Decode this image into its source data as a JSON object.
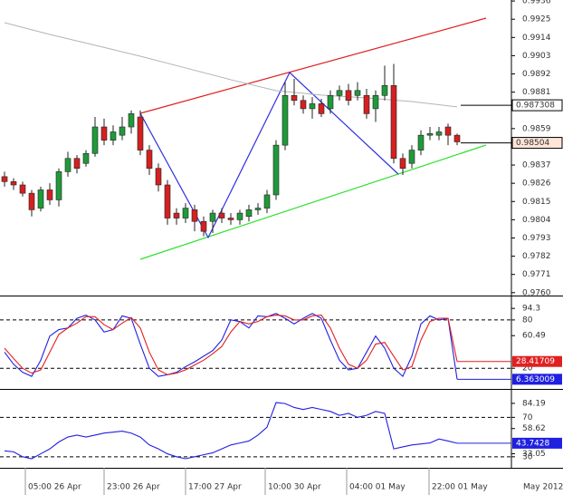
{
  "chart_data": [
    {
      "type": "candlestick",
      "open": [
        0.983,
        0.9827,
        0.9825,
        0.982,
        0.9811,
        0.9822,
        0.9816,
        0.9833,
        0.9841,
        0.9838,
        0.9844,
        0.986,
        0.9852,
        0.9855,
        0.986,
        0.9866,
        0.9846,
        0.9835,
        0.9825,
        0.9808,
        0.9805,
        0.981,
        0.9803,
        0.9803,
        0.9808,
        0.9805,
        0.9804,
        0.9806,
        0.981,
        0.9811,
        0.9819,
        0.9849,
        0.9879,
        0.9876,
        0.9871,
        0.9874,
        0.9871,
        0.9879,
        0.9882,
        0.9879,
        0.9879,
        0.9871,
        0.9879,
        0.9885,
        0.9841,
        0.9838,
        0.9846,
        0.9855,
        0.9855,
        0.986,
        0.9855
      ],
      "high": [
        0.9833,
        0.9829,
        0.9827,
        0.9822,
        0.9824,
        0.9826,
        0.9835,
        0.9845,
        0.9843,
        0.9846,
        0.9866,
        0.9865,
        0.9861,
        0.9866,
        0.987,
        0.987,
        0.9849,
        0.9838,
        0.9828,
        0.9811,
        0.9814,
        0.9813,
        0.9806,
        0.981,
        0.9811,
        0.9808,
        0.981,
        0.9813,
        0.9814,
        0.9822,
        0.9852,
        0.9887,
        0.9889,
        0.9879,
        0.9878,
        0.9877,
        0.9882,
        0.9885,
        0.9886,
        0.9887,
        0.9883,
        0.9882,
        0.9897,
        0.9898,
        0.9844,
        0.9849,
        0.9858,
        0.986,
        0.986,
        0.9862,
        0.9856
      ],
      "low": [
        0.9824,
        0.9822,
        0.9818,
        0.9806,
        0.9809,
        0.9813,
        0.9812,
        0.983,
        0.9832,
        0.9836,
        0.9842,
        0.9849,
        0.9849,
        0.9852,
        0.9856,
        0.9843,
        0.9831,
        0.9821,
        0.9801,
        0.9801,
        0.9802,
        0.9797,
        0.9794,
        0.9796,
        0.9802,
        0.9801,
        0.9801,
        0.9803,
        0.9807,
        0.9808,
        0.9816,
        0.9846,
        0.9873,
        0.9868,
        0.9865,
        0.9866,
        0.9868,
        0.9876,
        0.9873,
        0.9876,
        0.9865,
        0.9863,
        0.9876,
        0.9838,
        0.9831,
        0.9835,
        0.9843,
        0.9852,
        0.9852,
        0.9849,
        0.9849
      ],
      "close": [
        0.9827,
        0.9825,
        0.982,
        0.981,
        0.9822,
        0.9816,
        0.9833,
        0.9841,
        0.9835,
        0.9844,
        0.986,
        0.9852,
        0.9857,
        0.986,
        0.9868,
        0.9846,
        0.9835,
        0.9825,
        0.9805,
        0.9805,
        0.9811,
        0.9803,
        0.9797,
        0.9808,
        0.9805,
        0.9804,
        0.9808,
        0.981,
        0.9811,
        0.9819,
        0.9849,
        0.9879,
        0.9876,
        0.9871,
        0.9874,
        0.9868,
        0.9879,
        0.9882,
        0.9876,
        0.9882,
        0.9868,
        0.9879,
        0.9885,
        0.9841,
        0.9835,
        0.9846,
        0.9855,
        0.9856,
        0.9857,
        0.9855,
        0.9851
      ],
      "up_color": "#1f9a3a",
      "down_color": "#d42020",
      "ma": {
        "x": [
          0,
          5,
          10,
          15,
          20,
          25,
          30,
          35,
          40,
          45,
          50
        ],
        "values": [
          0.99229,
          0.99158,
          0.99093,
          0.99027,
          0.98956,
          0.98885,
          0.98819,
          0.98792,
          0.98775,
          0.98753,
          0.98721
        ],
        "color": "#b4b4b4"
      },
      "ma_last": 0.987308,
      "close_last": 0.98504,
      "xlim": [
        -0.5,
        56
      ],
      "ylim": [
        0.97588,
        0.99366
      ],
      "yticks": [
        0.9936,
        0.9925,
        0.9914,
        0.9903,
        0.9892,
        0.9881,
        0.9859,
        0.9837,
        0.9826,
        0.9815,
        0.9804,
        0.9793,
        0.9782,
        0.9771,
        {
          "value": 0.976,
          "label": "0.9760"
        }
      ]
    },
    {
      "type": "line",
      "series": [
        {
          "color": "#2020e0",
          "values": [
            40,
            25,
            15,
            10,
            30,
            60,
            68,
            70,
            82,
            86,
            80,
            65,
            68,
            85,
            82,
            50,
            20,
            10,
            12,
            15,
            22,
            28,
            35,
            42,
            55,
            80,
            78,
            70,
            85,
            84,
            88,
            82,
            75,
            82,
            88,
            82,
            55,
            30,
            18,
            20,
            40,
            60,
            45,
            20,
            10,
            35,
            75,
            85,
            80,
            82,
            6.363009
          ]
        },
        {
          "color": "#e02020",
          "values": [
            45,
            32,
            20,
            14,
            18,
            40,
            62,
            70,
            76,
            84,
            84,
            74,
            68,
            76,
            83,
            70,
            40,
            18,
            12,
            14,
            18,
            24,
            30,
            38,
            47,
            65,
            78,
            75,
            78,
            84,
            86,
            85,
            80,
            80,
            85,
            86,
            70,
            45,
            25,
            20,
            30,
            50,
            52,
            35,
            18,
            22,
            55,
            78,
            82,
            82,
            28.41709
          ]
        }
      ],
      "reference_lines": [
        80,
        20
      ],
      "xlim": [
        -0.5,
        56
      ],
      "ylim": [
        -4.5,
        108
      ],
      "yticks": [
        94.3,
        80,
        60.49,
        20
      ]
    },
    {
      "type": "line",
      "series": [
        {
          "color": "#2020e0",
          "values": [
            36,
            35,
            30,
            28,
            33,
            38,
            45,
            50,
            52,
            50,
            52,
            54,
            55,
            56,
            54,
            50,
            42,
            38,
            33,
            30,
            28,
            30,
            32,
            34,
            38,
            42,
            44,
            46,
            52,
            60,
            85,
            84,
            80,
            78,
            80,
            78,
            76,
            72,
            74,
            70,
            72,
            76,
            74,
            38,
            40,
            42,
            43,
            44,
            48,
            46,
            43.7428
          ]
        }
      ],
      "reference_lines": [
        70,
        30
      ],
      "xlim": [
        -0.5,
        56
      ],
      "ylim": [
        18.8,
        97.9
      ],
      "yticks": [
        84.19,
        70,
        58.62,
        33.05,
        30
      ],
      "xticks": [
        {
          "value": 2.3,
          "label": "05:00 26 Apr"
        },
        {
          "value": 11,
          "label": "23:00 26 Apr"
        },
        {
          "value": 20,
          "label": "17:00 27 Apr"
        },
        {
          "value": 28.8,
          "label": "10:00 30 Apr"
        },
        {
          "value": 37.8,
          "label": "04:00 01 May"
        },
        {
          "value": 46.9,
          "label": "22:00 01 May"
        }
      ],
      "period_label": "May 2012"
    }
  ]
}
